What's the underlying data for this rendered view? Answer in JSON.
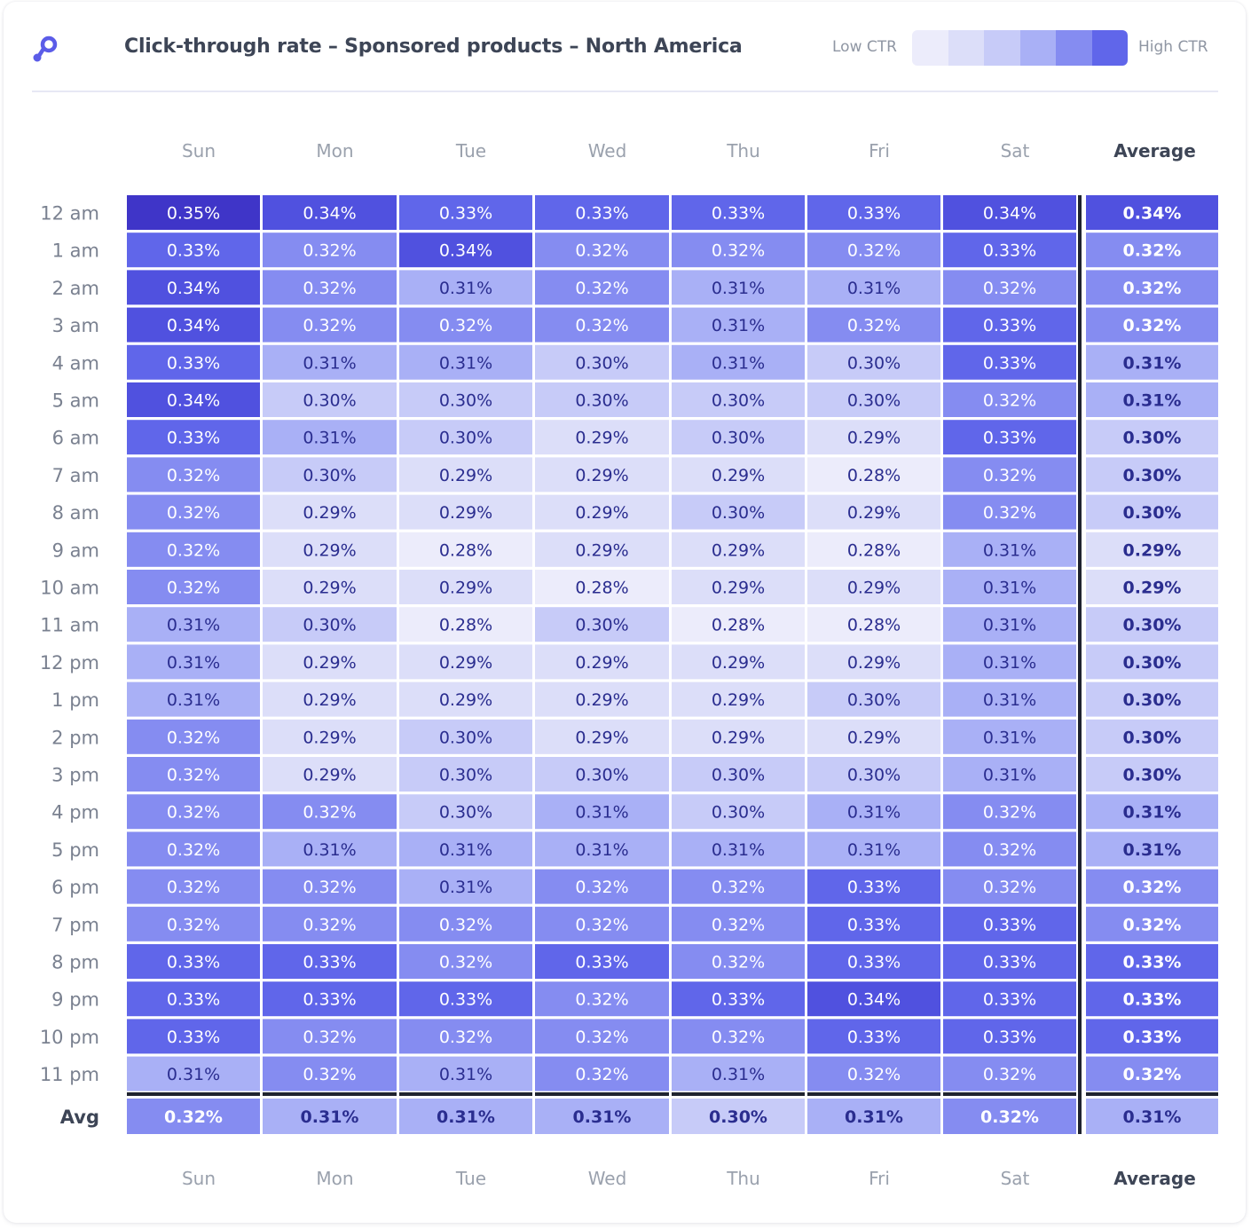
{
  "header": {
    "title": "Click-through rate – Sponsored products – North America",
    "legend_low": "Low CTR",
    "legend_high": "High CTR",
    "legend_colors": [
      "#ececfb",
      "#dcdef9",
      "#c7cbf8",
      "#a9b0f6",
      "#858cf1",
      "#6066ea"
    ]
  },
  "chart_data": {
    "type": "heatmap",
    "title": "Click-through rate – Sponsored products – North America",
    "columns": [
      "Sun",
      "Mon",
      "Tue",
      "Wed",
      "Thu",
      "Fri",
      "Sat"
    ],
    "average_column_label": "Average",
    "rows": [
      "12 am",
      "1 am",
      "2 am",
      "3 am",
      "4 am",
      "5 am",
      "6 am",
      "7 am",
      "8 am",
      "9 am",
      "10 am",
      "11 am",
      "12 pm",
      "1 pm",
      "2 pm",
      "3 pm",
      "4 pm",
      "5 pm",
      "6 pm",
      "7 pm",
      "8 pm",
      "9 pm",
      "10 pm",
      "11 pm"
    ],
    "average_row_label": "Avg",
    "unit": "%",
    "values": [
      [
        0.35,
        0.34,
        0.33,
        0.33,
        0.33,
        0.33,
        0.34
      ],
      [
        0.33,
        0.32,
        0.34,
        0.32,
        0.32,
        0.32,
        0.33
      ],
      [
        0.34,
        0.32,
        0.31,
        0.32,
        0.31,
        0.31,
        0.32
      ],
      [
        0.34,
        0.32,
        0.32,
        0.32,
        0.31,
        0.32,
        0.33
      ],
      [
        0.33,
        0.31,
        0.31,
        0.3,
        0.31,
        0.3,
        0.33
      ],
      [
        0.34,
        0.3,
        0.3,
        0.3,
        0.3,
        0.3,
        0.32
      ],
      [
        0.33,
        0.31,
        0.3,
        0.29,
        0.3,
        0.29,
        0.33
      ],
      [
        0.32,
        0.3,
        0.29,
        0.29,
        0.29,
        0.28,
        0.32
      ],
      [
        0.32,
        0.29,
        0.29,
        0.29,
        0.3,
        0.29,
        0.32
      ],
      [
        0.32,
        0.29,
        0.28,
        0.29,
        0.29,
        0.28,
        0.31
      ],
      [
        0.32,
        0.29,
        0.29,
        0.28,
        0.29,
        0.29,
        0.31
      ],
      [
        0.31,
        0.3,
        0.28,
        0.3,
        0.28,
        0.28,
        0.31
      ],
      [
        0.31,
        0.29,
        0.29,
        0.29,
        0.29,
        0.29,
        0.31
      ],
      [
        0.31,
        0.29,
        0.29,
        0.29,
        0.29,
        0.3,
        0.31
      ],
      [
        0.32,
        0.29,
        0.3,
        0.29,
        0.29,
        0.29,
        0.31
      ],
      [
        0.32,
        0.29,
        0.3,
        0.3,
        0.3,
        0.3,
        0.31
      ],
      [
        0.32,
        0.32,
        0.3,
        0.31,
        0.3,
        0.31,
        0.32
      ],
      [
        0.32,
        0.31,
        0.31,
        0.31,
        0.31,
        0.31,
        0.32
      ],
      [
        0.32,
        0.32,
        0.31,
        0.32,
        0.32,
        0.33,
        0.32
      ],
      [
        0.32,
        0.32,
        0.32,
        0.32,
        0.32,
        0.33,
        0.33
      ],
      [
        0.33,
        0.33,
        0.32,
        0.33,
        0.32,
        0.33,
        0.33
      ],
      [
        0.33,
        0.33,
        0.33,
        0.32,
        0.33,
        0.34,
        0.33
      ],
      [
        0.33,
        0.32,
        0.32,
        0.32,
        0.32,
        0.33,
        0.33
      ],
      [
        0.31,
        0.32,
        0.31,
        0.32,
        0.31,
        0.32,
        0.32
      ]
    ],
    "row_averages": [
      0.34,
      0.32,
      0.32,
      0.32,
      0.31,
      0.31,
      0.3,
      0.3,
      0.3,
      0.29,
      0.29,
      0.3,
      0.3,
      0.3,
      0.3,
      0.3,
      0.31,
      0.31,
      0.32,
      0.32,
      0.33,
      0.33,
      0.33,
      0.32
    ],
    "column_averages": [
      0.32,
      0.31,
      0.31,
      0.31,
      0.3,
      0.31,
      0.32
    ],
    "overall_average": 0.31,
    "color_scale": {
      "0.28": "#ececfb",
      "0.29": "#dcdef9",
      "0.30": "#c7cbf8",
      "0.31": "#a9b0f6",
      "0.32": "#858cf1",
      "0.33": "#6066ea",
      "0.34": "#5051df",
      "0.35": "#3f35c8"
    },
    "average_color_scale": {
      "0.29": "#dcdef9",
      "0.30": "#c7cbf8",
      "0.31": "#a9b0f6",
      "0.32": "#858cf1",
      "0.33": "#6066ea",
      "0.34": "#5051df"
    },
    "column_average_colors": [
      "#858cf1",
      "#a9b0f6",
      "#a9b0f6",
      "#a9b0f6",
      "#c7cbf8",
      "#a9b0f6",
      "#858cf1"
    ],
    "overall_average_color": "#a9b0f6",
    "text_colors": {
      "light": "#ffffff",
      "dark": "#2a2d8f"
    }
  }
}
